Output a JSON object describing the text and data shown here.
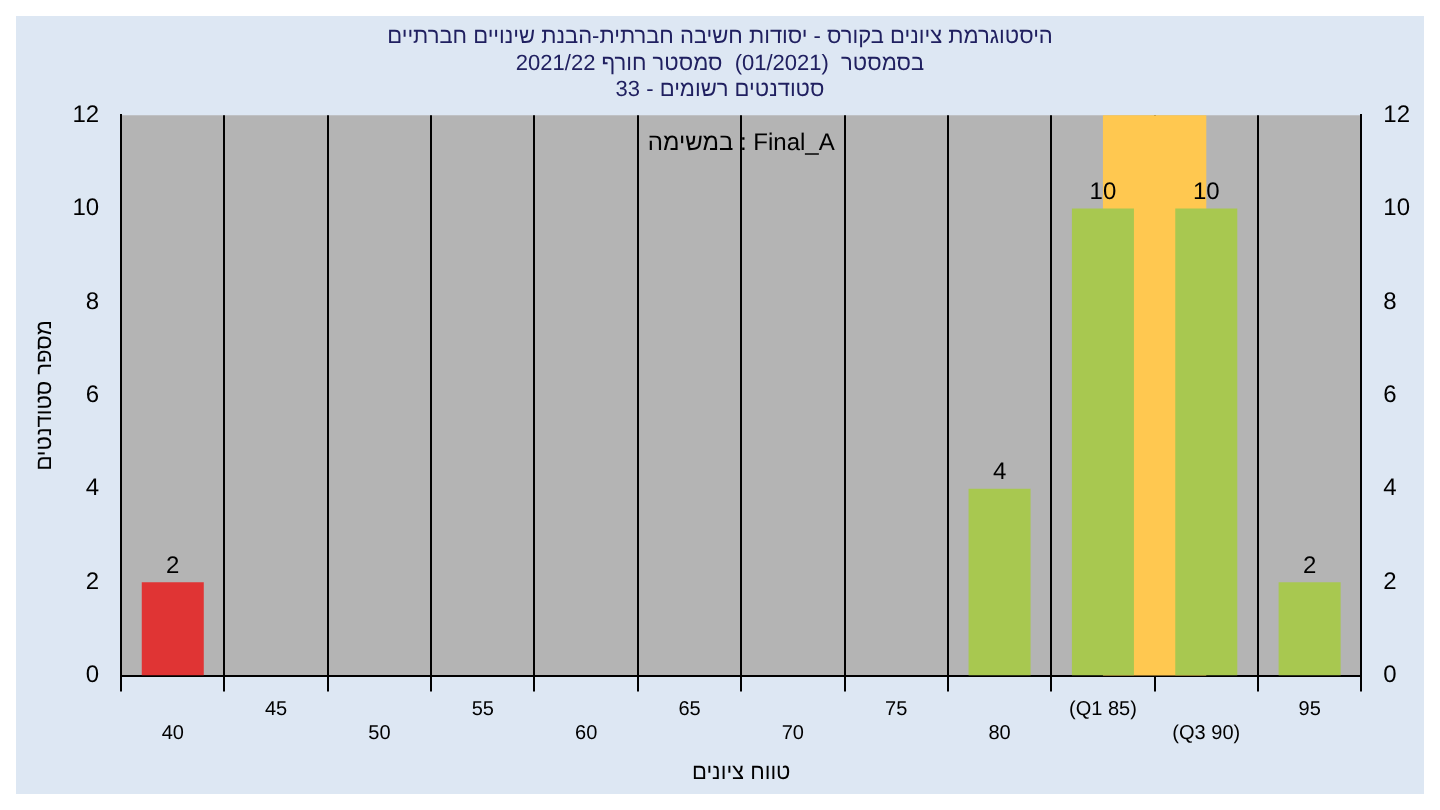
{
  "chart_data": {
    "type": "bar",
    "title": "היסטוגרמת ציונים בקורס - יסודות חשיבה חברתית-הבנת שינויים חברתיים\nבסמסטר  (01/2021)  סמסטר חורף 2021/22\nסטודנטים רשומים - 33",
    "xlabel": "טווח ציונים",
    "ylabel": "מספר סטודנטים",
    "annotations": [
      "במשימה : Final_A"
    ],
    "categories": [
      "40",
      "45",
      "50",
      "55",
      "60",
      "65",
      "70",
      "75",
      "80",
      "(Q1 85)",
      "(Q3 90)",
      "95"
    ],
    "values": [
      2,
      0,
      0,
      0,
      0,
      0,
      0,
      0,
      4,
      10,
      10,
      2
    ],
    "value_labels": [
      "2",
      null,
      null,
      null,
      null,
      null,
      null,
      null,
      "4",
      "10",
      "10",
      "2"
    ],
    "colors": [
      "#e03434",
      "#a8c850",
      "#a8c850",
      "#a8c850",
      "#a8c850",
      "#a8c850",
      "#a8c850",
      "#a8c850",
      "#a8c850",
      "#a8c850",
      "#a8c850",
      "#a8c850"
    ],
    "ylim": [
      0,
      12
    ],
    "yticks": [
      0,
      2,
      4,
      6,
      8,
      10,
      12
    ],
    "y2lim": [
      0,
      12
    ],
    "y2ticks": [
      0,
      2,
      4,
      6,
      8,
      10,
      12
    ],
    "bands": [
      {
        "axis": "x",
        "from": "(Q1 85)",
        "to": "(Q3 90)",
        "color": "#ffc850"
      }
    ],
    "grid": "x",
    "legend": false
  }
}
